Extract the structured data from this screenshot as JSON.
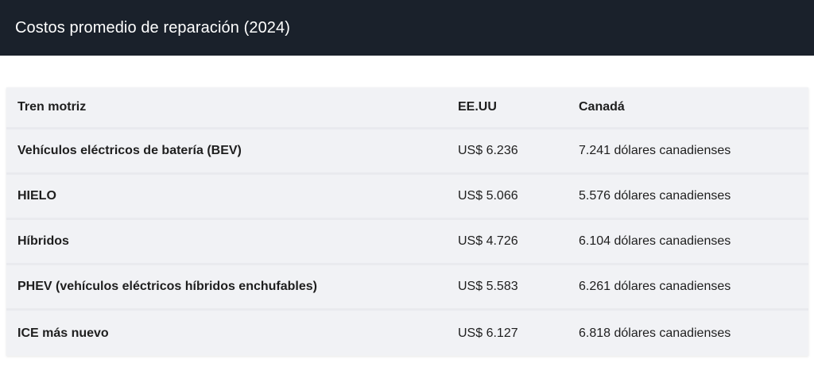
{
  "header": {
    "title": "Costos promedio de reparación (2024)"
  },
  "table": {
    "columns": [
      "Tren motriz",
      "EE.UU",
      "Canadá"
    ],
    "rows": [
      [
        "Vehículos eléctricos de batería (BEV)",
        "US$ 6.236",
        "7.241 dólares canadienses"
      ],
      [
        "HIELO",
        "US$ 5.066",
        "5.576 dólares canadienses"
      ],
      [
        "Híbridos",
        "US$ 4.726",
        "6.104 dólares canadienses"
      ],
      [
        "PHEV (vehículos eléctricos híbridos enchufables)",
        "US$ 5.583",
        "6.261 dólares canadienses"
      ],
      [
        "ICE más nuevo",
        "US$ 6.127",
        "6.818 dólares canadienses"
      ]
    ]
  }
}
